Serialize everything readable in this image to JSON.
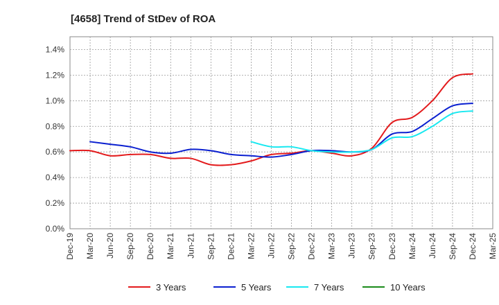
{
  "chart_data": {
    "type": "line",
    "title": "[4658]  Trend of StDev of ROA",
    "xlabel": "",
    "ylabel": "",
    "ylim": [
      0,
      1.5
    ],
    "yticks": [
      "0.0%",
      "0.2%",
      "0.4%",
      "0.6%",
      "0.8%",
      "1.0%",
      "1.2%",
      "1.4%"
    ],
    "ytick_values": [
      0,
      0.2,
      0.4,
      0.6,
      0.8,
      1.0,
      1.2,
      1.4
    ],
    "categories": [
      "Dec-19",
      "Mar-20",
      "Jun-20",
      "Sep-20",
      "Dec-20",
      "Mar-21",
      "Jun-21",
      "Sep-21",
      "Dec-21",
      "Mar-22",
      "Jun-22",
      "Sep-22",
      "Dec-22",
      "Mar-23",
      "Jun-23",
      "Sep-23",
      "Dec-23",
      "Mar-24",
      "Jun-24",
      "Sep-24",
      "Dec-24",
      "Mar-25"
    ],
    "grid": true,
    "legend_position": "bottom",
    "series": [
      {
        "name": "3 Years",
        "color": "#e31a1c",
        "values": [
          0.61,
          0.61,
          0.57,
          0.58,
          0.58,
          0.55,
          0.55,
          0.5,
          0.5,
          0.53,
          0.58,
          0.59,
          0.61,
          0.59,
          0.57,
          0.63,
          0.83,
          0.87,
          1.0,
          1.18,
          1.21,
          null
        ]
      },
      {
        "name": "5 Years",
        "color": "#0a1fd0",
        "values": [
          null,
          0.68,
          0.66,
          0.64,
          0.6,
          0.59,
          0.62,
          0.61,
          0.58,
          0.57,
          0.56,
          0.58,
          0.61,
          0.61,
          0.6,
          0.62,
          0.74,
          0.76,
          0.86,
          0.96,
          0.98,
          null
        ]
      },
      {
        "name": "7 Years",
        "color": "#17e8f0",
        "values": [
          null,
          null,
          null,
          null,
          null,
          null,
          null,
          null,
          null,
          0.68,
          0.64,
          0.64,
          0.61,
          0.6,
          0.6,
          0.62,
          0.71,
          0.72,
          0.8,
          0.9,
          0.92,
          null
        ]
      },
      {
        "name": "10 Years",
        "color": "#1a8a1a",
        "values": [
          null,
          null,
          null,
          null,
          null,
          null,
          null,
          null,
          null,
          null,
          null,
          null,
          null,
          null,
          null,
          null,
          null,
          null,
          null,
          null,
          null,
          null
        ]
      }
    ]
  }
}
